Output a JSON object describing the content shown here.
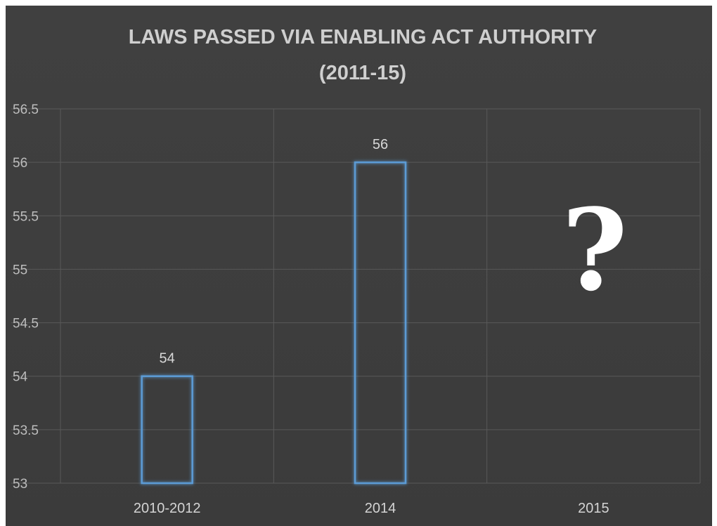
{
  "chart_data": {
    "type": "bar",
    "title_lines": [
      "LAWS PASSED VIA ENABLING ACT AUTHORITY",
      "(2011-15)"
    ],
    "categories": [
      "2010-2012",
      "2014",
      "2015"
    ],
    "values": [
      54,
      56,
      null
    ],
    "data_labels": [
      "54",
      "56",
      ""
    ],
    "annotation": "?",
    "xlabel": "",
    "ylabel": "",
    "ylim": [
      53,
      56.5
    ],
    "yticks": [
      53,
      53.5,
      54,
      54.5,
      55,
      55.5,
      56,
      56.5
    ],
    "ytick_labels": [
      "53",
      "53.5",
      "54",
      "54.5",
      "55",
      "55.5",
      "56",
      "56.5"
    ],
    "grid": true,
    "bar_style": "outline",
    "bar_color": "#5b9bd5",
    "background_color": "#3d3d3d",
    "grid_color": "#595959"
  }
}
